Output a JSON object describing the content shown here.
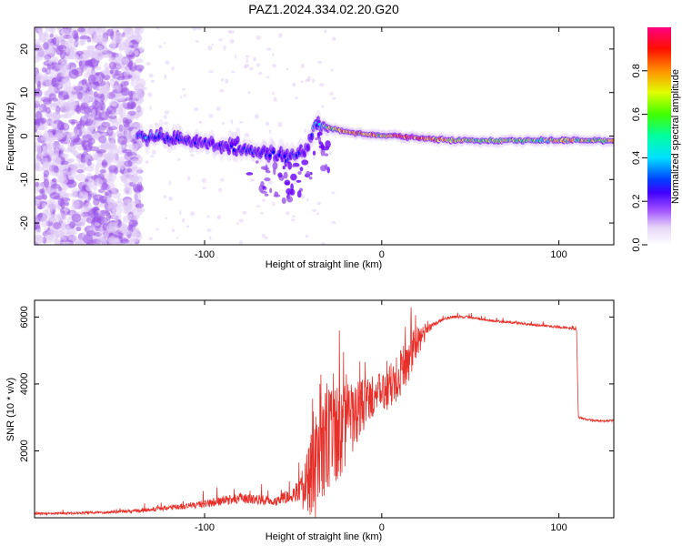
{
  "title": "PAZ1.2024.334.02.20.G20",
  "colors": {
    "snr_line": "#e8302a",
    "background": "#ffffff",
    "colormap": [
      "#ffffff",
      "#e0ccf5",
      "#9a55e8",
      "#6a00ff",
      "#0000ff",
      "#00d0ff",
      "#00ff40",
      "#ffff00",
      "#ff8000",
      "#ff0000",
      "#ff0070"
    ]
  },
  "chart_data": [
    {
      "type": "heatmap",
      "xlabel": "Height of straight line (km)",
      "ylabel": "Frequency (Hz)",
      "xlim": [
        -196,
        131
      ],
      "ylim": [
        -25,
        25
      ],
      "x_ticks": [
        -100,
        0,
        100
      ],
      "x_tick_labels": [
        "-100",
        "0",
        "100"
      ],
      "y_ticks": [
        -20,
        -10,
        0,
        10,
        20
      ],
      "y_tick_labels": [
        "-20",
        "-10",
        "0",
        "10",
        "20"
      ],
      "colorbar": {
        "label": "Normalized spectral amplitude",
        "range": [
          0,
          1
        ],
        "ticks": [
          0.0,
          0.2,
          0.4,
          0.6,
          0.8
        ],
        "tick_labels": [
          "0.0",
          "0.2",
          "0.4",
          "0.6",
          "0.8"
        ]
      },
      "ridge": {
        "x": [
          -138,
          -120,
          -100,
          -85,
          -75,
          -65,
          -55,
          -48,
          -42,
          -38,
          -30,
          -20,
          -10,
          0,
          10,
          20,
          40,
          60,
          80,
          100,
          131
        ],
        "freq": [
          0,
          -0.5,
          -1.5,
          -2.5,
          -3.5,
          -4,
          -5,
          -4.5,
          -3,
          3,
          2,
          1,
          0.5,
          0,
          0,
          -0.5,
          -1,
          -1,
          -1,
          -1,
          -1
        ],
        "amplitude": [
          0.45,
          0.4,
          0.35,
          0.35,
          0.4,
          0.35,
          0.4,
          0.45,
          0.3,
          0.5,
          0.7,
          0.85,
          0.8,
          0.75,
          0.95,
          0.95,
          0.75,
          0.7,
          0.65,
          0.7,
          0.75
        ]
      }
    },
    {
      "type": "line",
      "xlabel": "Height of straight line (km)",
      "ylabel": "SNR (10 * v/v)",
      "xlim": [
        -196,
        131
      ],
      "ylim": [
        0,
        6500
      ],
      "x_ticks": [
        -100,
        0,
        100
      ],
      "x_tick_labels": [
        "-100",
        "0",
        "100"
      ],
      "y_ticks": [
        2000,
        4000,
        6000
      ],
      "y_tick_labels": [
        "2000",
        "4000",
        "6000"
      ],
      "series": [
        {
          "x": [
            -196,
            -180,
            -160,
            -140,
            -130,
            -120,
            -110,
            -100,
            -90,
            -80,
            -70,
            -60,
            -50,
            -45,
            -40,
            -35,
            -30,
            -25,
            -20,
            -15,
            -10,
            -5,
            0,
            5,
            10,
            15,
            20,
            25,
            30,
            35,
            40,
            50,
            60,
            70,
            80,
            90,
            100,
            108,
            110,
            111,
            115,
            120,
            131
          ],
          "y": [
            120,
            130,
            160,
            200,
            250,
            300,
            350,
            420,
            500,
            580,
            550,
            500,
            700,
            900,
            1400,
            2200,
            2500,
            2600,
            2900,
            3100,
            3500,
            3650,
            3800,
            4000,
            4400,
            4800,
            5300,
            5600,
            5800,
            5950,
            6000,
            6000,
            5900,
            5850,
            5800,
            5750,
            5700,
            5650,
            5600,
            3000,
            2950,
            2900,
            2900
          ],
          "noise": [
            60,
            60,
            70,
            90,
            110,
            140,
            160,
            200,
            230,
            260,
            250,
            240,
            400,
            600,
            1400,
            1900,
            1800,
            1500,
            1300,
            1000,
            800,
            600,
            600,
            700,
            800,
            700,
            500,
            250,
            120,
            90,
            80,
            60,
            60,
            60,
            60,
            60,
            60,
            60,
            60,
            60,
            50,
            50,
            50
          ]
        }
      ]
    }
  ]
}
